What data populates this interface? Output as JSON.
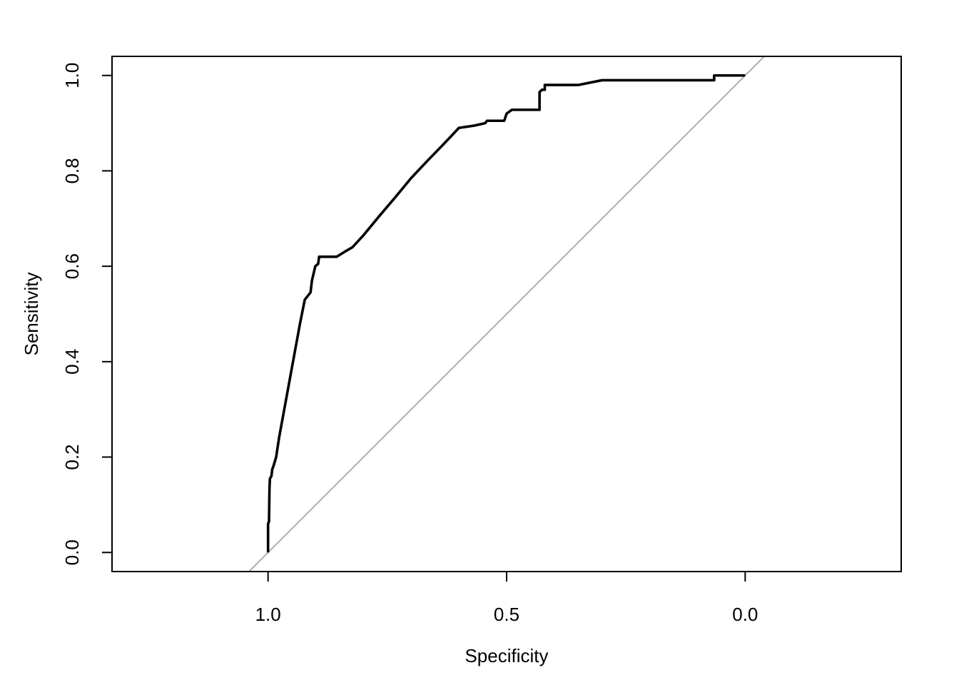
{
  "chart_data": {
    "type": "line",
    "title": "",
    "xlabel": "Specificity",
    "ylabel": "Sensitivity",
    "xlim": [
      1.327,
      -0.327
    ],
    "ylim": [
      -0.04,
      1.04
    ],
    "x_reversed": true,
    "grid": false,
    "legend": "none",
    "xticks": [
      {
        "value": 1.0,
        "label": "1.0"
      },
      {
        "value": 0.5,
        "label": "0.5"
      },
      {
        "value": 0.0,
        "label": "0.0"
      }
    ],
    "yticks": [
      {
        "value": 0.0,
        "label": "0.0"
      },
      {
        "value": 0.2,
        "label": "0.2"
      },
      {
        "value": 0.4,
        "label": "0.4"
      },
      {
        "value": 0.6,
        "label": "0.6"
      },
      {
        "value": 0.8,
        "label": "0.8"
      },
      {
        "value": 1.0,
        "label": "1.0"
      }
    ],
    "series": [
      {
        "color": "#000000",
        "x": [
          1.0,
          1.0,
          0.998,
          0.997,
          0.996,
          0.993,
          0.991,
          0.989,
          0.983,
          0.977,
          0.966,
          0.955,
          0.944,
          0.933,
          0.923,
          0.911,
          0.908,
          0.901,
          0.895,
          0.893,
          0.882,
          0.878,
          0.856,
          0.84,
          0.823,
          0.8,
          0.767,
          0.733,
          0.7,
          0.667,
          0.633,
          0.6,
          0.567,
          0.545,
          0.541,
          0.53,
          0.505,
          0.5,
          0.489,
          0.431,
          0.431,
          0.426,
          0.42,
          0.42,
          0.35,
          0.3,
          0.065,
          0.065,
          0.0
        ],
        "y": [
          0.0,
          0.06,
          0.065,
          0.135,
          0.155,
          0.16,
          0.175,
          0.18,
          0.2,
          0.24,
          0.3,
          0.36,
          0.42,
          0.48,
          0.53,
          0.545,
          0.57,
          0.6,
          0.605,
          0.62,
          0.62,
          0.62,
          0.62,
          0.63,
          0.64,
          0.665,
          0.705,
          0.745,
          0.785,
          0.82,
          0.855,
          0.89,
          0.895,
          0.9,
          0.905,
          0.905,
          0.905,
          0.92,
          0.928,
          0.928,
          0.965,
          0.97,
          0.97,
          0.98,
          0.98,
          0.99,
          0.99,
          1.0,
          1.0
        ]
      }
    ],
    "reference_line": {
      "color": "#a0a0a0",
      "from": [
        1.04,
        -0.04
      ],
      "to": [
        -0.04,
        1.04
      ]
    }
  }
}
